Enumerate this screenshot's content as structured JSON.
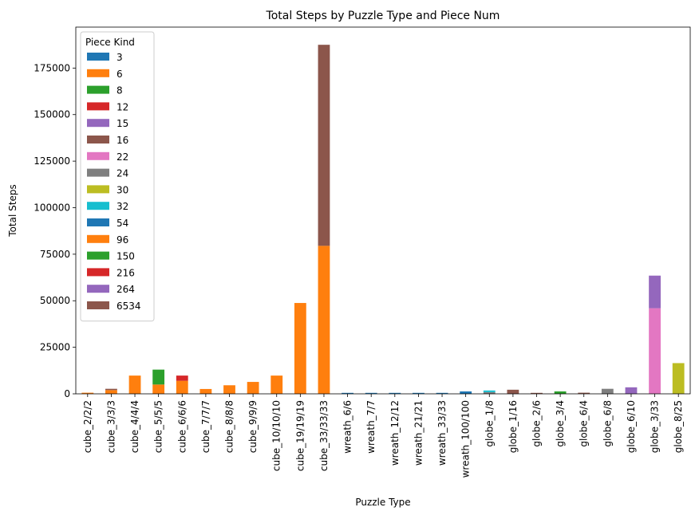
{
  "chart_data": {
    "type": "bar",
    "stacked": true,
    "title": "Total Steps by Puzzle Type and Piece Num",
    "xlabel": "Puzzle Type",
    "ylabel": "Total Steps",
    "ylim": [
      0,
      197000
    ],
    "yticks": [
      0,
      25000,
      50000,
      75000,
      100000,
      125000,
      150000,
      175000
    ],
    "legend_title": "Piece Kind",
    "legend_position": "top-left",
    "categories": [
      "cube_2/2/2",
      "cube_3/3/3",
      "cube_4/4/4",
      "cube_5/5/5",
      "cube_6/6/6",
      "cube_7/7/7",
      "cube_8/8/8",
      "cube_9/9/9",
      "cube_10/10/10",
      "cube_19/19/19",
      "cube_33/33/33",
      "wreath_6/6",
      "wreath_7/7",
      "wreath_12/12",
      "wreath_21/21",
      "wreath_33/33",
      "wreath_100/100",
      "globe_1/8",
      "globe_1/16",
      "globe_2/6",
      "globe_3/4",
      "globe_6/4",
      "globe_6/8",
      "globe_6/10",
      "globe_3/33",
      "globe_8/25"
    ],
    "series": [
      {
        "name": "3",
        "color": "#1f77b4",
        "values": [
          0,
          0,
          0,
          0,
          0,
          0,
          0,
          0,
          0,
          0,
          0,
          150,
          150,
          100,
          100,
          100,
          0,
          0,
          0,
          0,
          0,
          0,
          0,
          0,
          0,
          0
        ]
      },
      {
        "name": "6",
        "color": "#ff7f0e",
        "values": [
          600,
          2000,
          9800,
          5000,
          7000,
          2600,
          4600,
          6400,
          9800,
          48800,
          79500,
          0,
          0,
          0,
          0,
          0,
          0,
          0,
          0,
          0,
          0,
          0,
          0,
          0,
          0,
          0
        ]
      },
      {
        "name": "8",
        "color": "#2ca02c",
        "values": [
          0,
          0,
          0,
          8000,
          0,
          0,
          0,
          0,
          0,
          0,
          0,
          0,
          0,
          0,
          0,
          0,
          0,
          0,
          0,
          0,
          0,
          0,
          0,
          0,
          0,
          0
        ]
      },
      {
        "name": "12",
        "color": "#d62728",
        "values": [
          0,
          0,
          0,
          0,
          2800,
          0,
          0,
          0,
          0,
          0,
          0,
          0,
          0,
          0,
          0,
          0,
          0,
          0,
          0,
          0,
          0,
          0,
          0,
          0,
          0,
          0
        ]
      },
      {
        "name": "15",
        "color": "#9467bd",
        "values": [
          0,
          0,
          0,
          0,
          0,
          0,
          0,
          0,
          0,
          0,
          0,
          0,
          0,
          0,
          0,
          0,
          0,
          0,
          0,
          0,
          0,
          0,
          0,
          0,
          0,
          0
        ]
      },
      {
        "name": "16",
        "color": "#8c564b",
        "values": [
          0,
          700,
          0,
          0,
          0,
          0,
          0,
          0,
          0,
          0,
          0,
          0,
          0,
          0,
          0,
          0,
          0,
          0,
          2200,
          400,
          0,
          600,
          0,
          0,
          0,
          0
        ]
      },
      {
        "name": "22",
        "color": "#e377c2",
        "values": [
          0,
          0,
          0,
          0,
          0,
          0,
          0,
          0,
          0,
          0,
          0,
          0,
          0,
          0,
          0,
          0,
          0,
          0,
          0,
          0,
          0,
          0,
          0,
          0,
          46000,
          0
        ]
      },
      {
        "name": "24",
        "color": "#7f7f7f",
        "values": [
          0,
          0,
          0,
          0,
          0,
          0,
          0,
          0,
          0,
          0,
          0,
          0,
          0,
          0,
          0,
          0,
          0,
          900,
          0,
          0,
          0,
          0,
          2700,
          0,
          0,
          0
        ]
      },
      {
        "name": "30",
        "color": "#bcbd22",
        "values": [
          0,
          0,
          0,
          0,
          0,
          0,
          0,
          0,
          0,
          0,
          0,
          0,
          0,
          0,
          0,
          0,
          0,
          0,
          0,
          0,
          0,
          0,
          0,
          0,
          0,
          16500
        ]
      },
      {
        "name": "32",
        "color": "#17becf",
        "values": [
          0,
          0,
          0,
          0,
          0,
          0,
          0,
          0,
          0,
          0,
          0,
          0,
          0,
          0,
          0,
          0,
          0,
          900,
          0,
          0,
          0,
          0,
          0,
          0,
          0,
          0
        ]
      },
      {
        "name": "54",
        "color": "#1f77b4",
        "values": [
          0,
          0,
          0,
          0,
          0,
          0,
          0,
          0,
          0,
          0,
          0,
          0,
          0,
          0,
          0,
          0,
          1300,
          0,
          0,
          0,
          0,
          0,
          0,
          0,
          0,
          0
        ]
      },
      {
        "name": "96",
        "color": "#ff7f0e",
        "values": [
          0,
          0,
          0,
          0,
          0,
          0,
          0,
          0,
          0,
          0,
          0,
          0,
          0,
          0,
          0,
          0,
          0,
          0,
          0,
          0,
          0,
          0,
          0,
          0,
          0,
          0
        ]
      },
      {
        "name": "150",
        "color": "#2ca02c",
        "values": [
          0,
          0,
          0,
          0,
          0,
          0,
          0,
          0,
          0,
          0,
          0,
          0,
          0,
          0,
          0,
          0,
          0,
          0,
          0,
          0,
          1300,
          0,
          0,
          0,
          0,
          0
        ]
      },
      {
        "name": "216",
        "color": "#d62728",
        "values": [
          0,
          0,
          0,
          0,
          0,
          0,
          0,
          0,
          0,
          0,
          0,
          0,
          0,
          0,
          0,
          0,
          0,
          0,
          0,
          0,
          0,
          0,
          0,
          0,
          0,
          0
        ]
      },
      {
        "name": "264",
        "color": "#9467bd",
        "values": [
          0,
          0,
          0,
          0,
          0,
          0,
          0,
          0,
          0,
          0,
          0,
          0,
          0,
          0,
          0,
          0,
          0,
          0,
          0,
          0,
          0,
          0,
          0,
          3500,
          17500,
          0
        ]
      },
      {
        "name": "6534",
        "color": "#8c564b",
        "values": [
          0,
          0,
          0,
          0,
          0,
          0,
          0,
          0,
          0,
          0,
          108000,
          0,
          0,
          0,
          0,
          0,
          0,
          0,
          0,
          0,
          0,
          0,
          0,
          0,
          0,
          0
        ]
      }
    ]
  }
}
